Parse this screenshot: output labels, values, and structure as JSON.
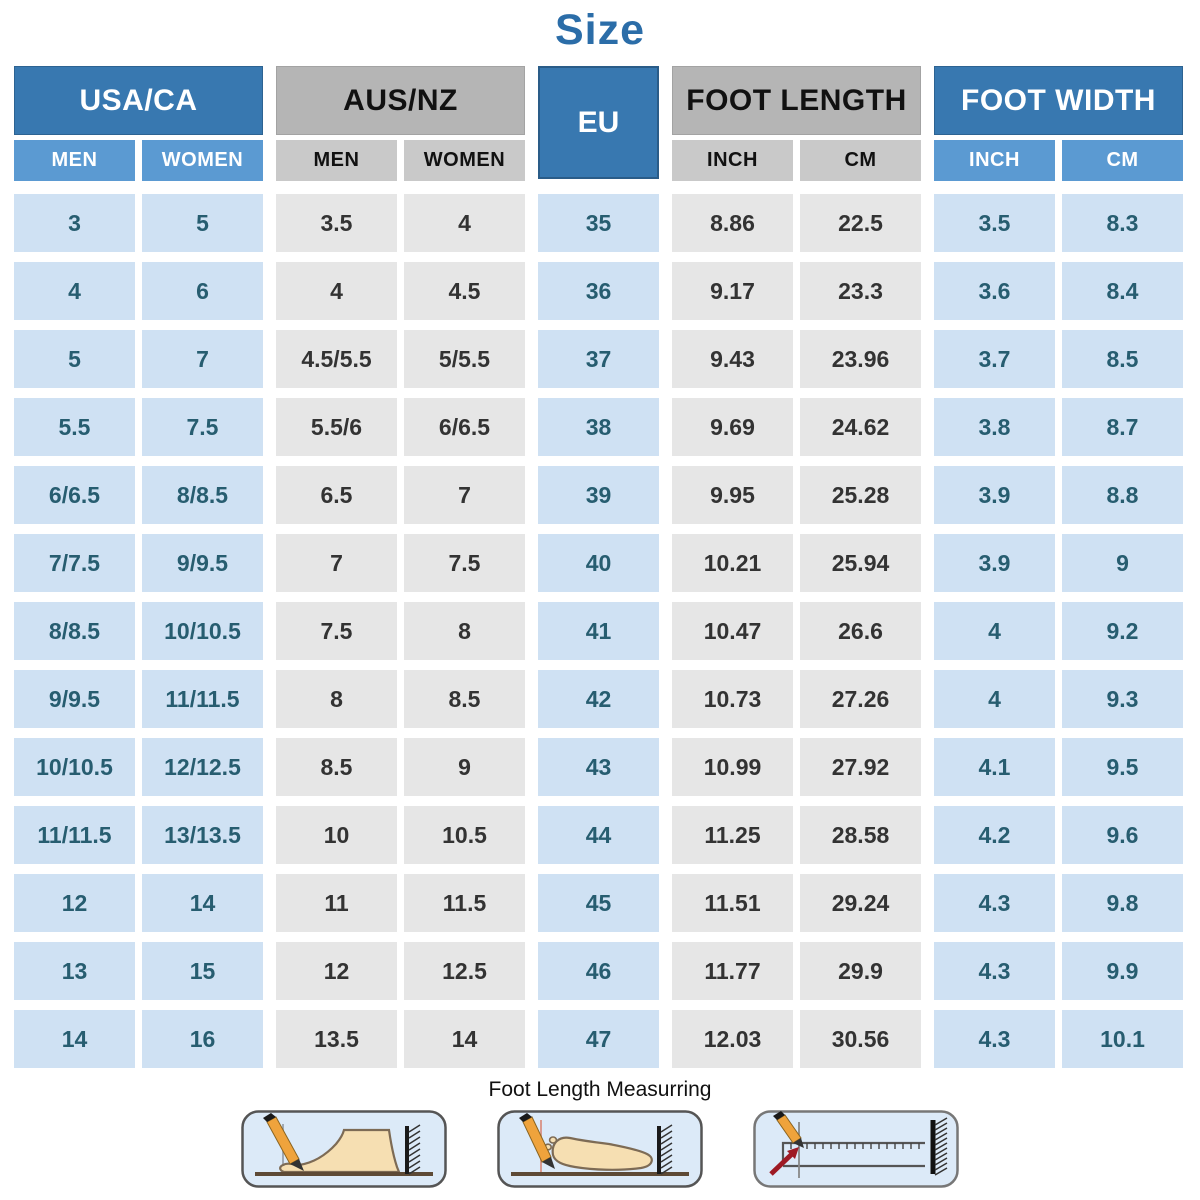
{
  "title": "Size",
  "table": {
    "groups": [
      {
        "label": "USA/CA",
        "style": "blue",
        "sub": [
          "MEN",
          "WOMEN"
        ]
      },
      {
        "label": "AUS/NZ",
        "style": "gray",
        "sub": [
          "MEN",
          "WOMEN"
        ]
      },
      {
        "label": "EU",
        "style": "blue",
        "sub": []
      },
      {
        "label": "FOOT LENGTH",
        "style": "gray",
        "sub": [
          "INCH",
          "CM"
        ]
      },
      {
        "label": "FOOT WIDTH",
        "style": "blue",
        "sub": [
          "INCH",
          "CM"
        ]
      }
    ],
    "columns": [
      "usa-men",
      "usa-women",
      "aus-men",
      "aus-women",
      "eu",
      "foot-length-inch",
      "foot-length-cm",
      "foot-width-inch",
      "foot-width-cm"
    ],
    "rows": [
      [
        "3",
        "5",
        "3.5",
        "4",
        "35",
        "8.86",
        "22.5",
        "3.5",
        "8.3"
      ],
      [
        "4",
        "6",
        "4",
        "4.5",
        "36",
        "9.17",
        "23.3",
        "3.6",
        "8.4"
      ],
      [
        "5",
        "7",
        "4.5/5.5",
        "5/5.5",
        "37",
        "9.43",
        "23.96",
        "3.7",
        "8.5"
      ],
      [
        "5.5",
        "7.5",
        "5.5/6",
        "6/6.5",
        "38",
        "9.69",
        "24.62",
        "3.8",
        "8.7"
      ],
      [
        "6/6.5",
        "8/8.5",
        "6.5",
        "7",
        "39",
        "9.95",
        "25.28",
        "3.9",
        "8.8"
      ],
      [
        "7/7.5",
        "9/9.5",
        "7",
        "7.5",
        "40",
        "10.21",
        "25.94",
        "3.9",
        "9"
      ],
      [
        "8/8.5",
        "10/10.5",
        "7.5",
        "8",
        "41",
        "10.47",
        "26.6",
        "4",
        "9.2"
      ],
      [
        "9/9.5",
        "11/11.5",
        "8",
        "8.5",
        "42",
        "10.73",
        "27.26",
        "4",
        "9.3"
      ],
      [
        "10/10.5",
        "12/12.5",
        "8.5",
        "9",
        "43",
        "10.99",
        "27.92",
        "4.1",
        "9.5"
      ],
      [
        "11/11.5",
        "13/13.5",
        "10",
        "10.5",
        "44",
        "11.25",
        "28.58",
        "4.2",
        "9.6"
      ],
      [
        "12",
        "14",
        "11",
        "11.5",
        "45",
        "11.51",
        "29.24",
        "4.3",
        "9.8"
      ],
      [
        "13",
        "15",
        "12",
        "12.5",
        "46",
        "11.77",
        "29.9",
        "4.3",
        "9.9"
      ],
      [
        "14",
        "16",
        "13.5",
        "14",
        "47",
        "12.03",
        "30.56",
        "4.3",
        "10.1"
      ]
    ]
  },
  "footer": {
    "caption": "Foot Length Measurring",
    "illustrations": [
      "foot-side-measure-icon",
      "foot-top-measure-icon",
      "ruler-measure-icon"
    ]
  },
  "colors": {
    "title_blue": "#2b6da8",
    "header_blue": "#3878b0",
    "subheader_blue": "#5b9ad2",
    "header_gray": "#b5b5b5",
    "subheader_gray": "#c9c9c9",
    "cell_blue": "#cfe1f3",
    "cell_gray": "#e6e6e6",
    "cell_blue_text": "#275d70",
    "cell_gray_text": "#333333"
  }
}
